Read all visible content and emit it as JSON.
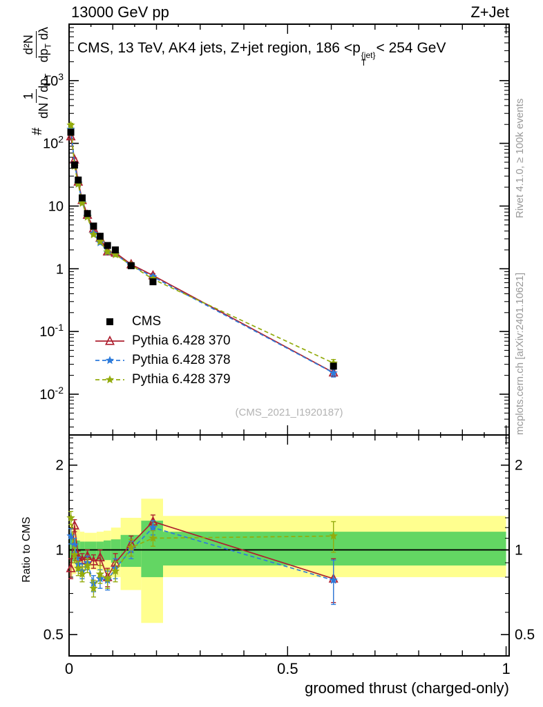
{
  "header": {
    "left": "13000 GeV pp",
    "right": "Z+Jet"
  },
  "panel_title": {
    "pre": "CMS, 13 TeV, AK4 jets, Z+jet region, 186 <p",
    "sub": "T",
    "sup": "{jet}",
    "post": "< 254 GeV"
  },
  "ylabel": {
    "prefix": "#",
    "f1_num": "1",
    "f1_den_a": "dN / dp",
    "f1_den_b": "T",
    "f2_num": "d²N",
    "f2_den_a": "dp",
    "f2_den_b": "T",
    "f2_den_c": " dλ"
  },
  "ratio_axis_label": "Ratio to CMS",
  "x_axis_label": "groomed thrust (charged-only)",
  "watermark": "(CMS_2021_I1920187)",
  "side_notes": {
    "top": "Rivet 4.1.0, ≥ 100k events",
    "bottom": "mcplots.cern.ch [arXiv:2401.10621]"
  },
  "legend": [
    {
      "label": "CMS",
      "marker": "square",
      "color": "#000000",
      "line": false,
      "dash": ""
    },
    {
      "label": "Pythia 6.428 370",
      "marker": "triangle-open",
      "color": "#ad1f2f",
      "line": true,
      "dash": ""
    },
    {
      "label": "Pythia 6.428 378",
      "marker": "star",
      "color": "#2d7bdb",
      "line": true,
      "dash": "6 4"
    },
    {
      "label": "Pythia 6.428 379",
      "marker": "star",
      "color": "#93ab0d",
      "line": true,
      "dash": "6 4"
    }
  ],
  "chart_data": {
    "type": "line",
    "title": "CMS, 13 TeV, AK4 jets, Z+jet region, 186 <pT{jet}< 254 GeV",
    "xlabel": "groomed thrust (charged-only)",
    "x_range": [
      0,
      1.007
    ],
    "x_ticks": [
      0,
      0.5,
      1
    ],
    "main_panel": {
      "y_scale": "log",
      "y_range_exp": [
        -2.65,
        3.9
      ],
      "y_tick_exps": [
        -2,
        -1,
        0,
        1,
        2,
        3
      ],
      "x": [
        0.004,
        0.0125,
        0.021,
        0.03,
        0.042,
        0.056,
        0.071,
        0.088,
        0.106,
        0.142,
        0.192,
        0.605
      ],
      "cms_y": [
        150,
        45,
        26,
        13.5,
        7.6,
        4.8,
        3.3,
        2.35,
        2.0,
        1.12,
        0.62,
        0.028
      ],
      "cms_yerr_frac": 0.1
    },
    "ratio_panel": {
      "y_scale": "log",
      "y_range": [
        0.42,
        2.56
      ],
      "y_ticks": [
        0.5,
        1,
        2
      ],
      "err": [
        0.07,
        0.06,
        0.05,
        0.05,
        0.05,
        0.05,
        0.06,
        0.06,
        0.07,
        0.07,
        0.07,
        0.14
      ],
      "series": [
        {
          "name": "Pythia 6.428 370",
          "color": "#ad1f2f",
          "dash": "",
          "marker": "triangle-open",
          "ratio": [
            0.86,
            1.22,
            0.94,
            0.92,
            0.95,
            0.91,
            0.94,
            0.8,
            0.9,
            1.05,
            1.26,
            0.79
          ]
        },
        {
          "name": "Pythia 6.428 378",
          "color": "#2d7bdb",
          "dash": "6 4",
          "marker": "star",
          "ratio": [
            1.12,
            1.04,
            0.89,
            0.84,
            0.9,
            0.76,
            0.79,
            0.78,
            0.86,
            1.0,
            1.2,
            0.78
          ]
        },
        {
          "name": "Pythia 6.428 379",
          "color": "#93ab0d",
          "dash": "6 4",
          "marker": "star",
          "ratio": [
            1.3,
            0.96,
            0.86,
            0.82,
            0.88,
            0.73,
            0.82,
            0.79,
            0.84,
            1.02,
            1.1,
            1.12
          ]
        }
      ],
      "bands": {
        "yellow": "#ffff8f",
        "green": "#63d663",
        "bins": [
          [
            0,
            0.008,
            0.8,
            1.25,
            0.9,
            1.1
          ],
          [
            0.008,
            0.017,
            0.82,
            1.22,
            0.91,
            1.09
          ],
          [
            0.017,
            0.025,
            0.84,
            1.18,
            0.92,
            1.08
          ],
          [
            0.025,
            0.035,
            0.85,
            1.16,
            0.93,
            1.07
          ],
          [
            0.035,
            0.049,
            0.85,
            1.15,
            0.93,
            1.07
          ],
          [
            0.049,
            0.063,
            0.85,
            1.15,
            0.93,
            1.07
          ],
          [
            0.063,
            0.079,
            0.84,
            1.16,
            0.92,
            1.07
          ],
          [
            0.079,
            0.096,
            0.83,
            1.17,
            0.92,
            1.08
          ],
          [
            0.096,
            0.118,
            0.8,
            1.2,
            0.9,
            1.09
          ],
          [
            0.118,
            0.165,
            0.72,
            1.3,
            0.87,
            1.13
          ],
          [
            0.165,
            0.215,
            0.55,
            1.52,
            0.8,
            1.27
          ],
          [
            0.215,
            1.0,
            0.8,
            1.32,
            0.88,
            1.16
          ]
        ]
      }
    }
  }
}
